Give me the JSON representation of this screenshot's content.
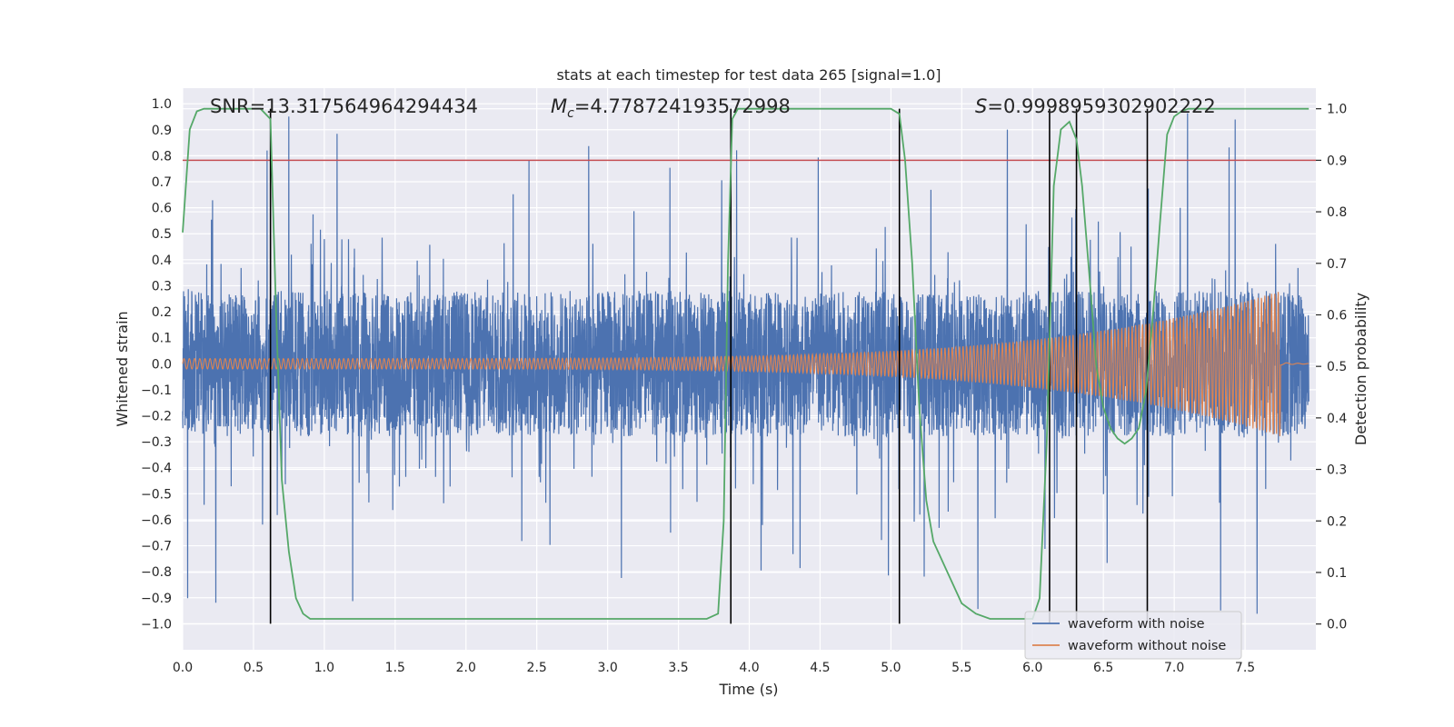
{
  "chart_data": {
    "type": "line",
    "title": "stats at each timestep for test data 265 [signal=1.0]",
    "xlabel": "Time (s)",
    "ylabel_left": "Whitened strain",
    "ylabel_right": "Detection probability",
    "xlim": [
      0.0,
      8.0
    ],
    "ylim_left": [
      -1.1,
      1.06
    ],
    "ylim_right": [
      -0.05,
      1.04
    ],
    "x_ticks": [
      "0.0",
      "0.5",
      "1.0",
      "1.5",
      "2.0",
      "2.5",
      "3.0",
      "3.5",
      "4.0",
      "4.5",
      "5.0",
      "5.5",
      "6.0",
      "6.5",
      "7.0",
      "7.5"
    ],
    "y_ticks_left": [
      "1.0",
      "0.9",
      "0.8",
      "0.7",
      "0.6",
      "0.5",
      "0.4",
      "0.3",
      "0.2",
      "0.1",
      "0.0",
      "-0.1",
      "-0.2",
      "-0.3",
      "-0.4",
      "-0.5",
      "-0.6",
      "-0.7",
      "-0.8",
      "-0.9",
      "-1.0"
    ],
    "y_ticks_right": [
      "1.0",
      "0.9",
      "0.8",
      "0.7",
      "0.6",
      "0.5",
      "0.4",
      "0.3",
      "0.2",
      "0.1",
      "0.0"
    ],
    "grid": true,
    "legend_position": "bottom-right",
    "annotations": {
      "snr": "SNR=13.317564964294434",
      "mc_prefix": "M",
      "mc_sub": "c",
      "mc_value": "=4.778724193572998",
      "s_prefix": "S",
      "s_value": "=0.9998959302902222"
    },
    "threshold": {
      "value": 0.9,
      "axis": "right",
      "color": "#c44e52"
    },
    "vertical_markers": [
      0.62,
      3.87,
      5.06,
      6.12,
      6.31,
      6.81
    ],
    "marker_ymin": -1.0,
    "marker_ymax_prob": 1.0,
    "series": [
      {
        "name": "waveform with noise",
        "color": "#4c72b0",
        "axis": "left",
        "kind": "noise",
        "envelope": 0.28,
        "peak_max": 0.97
      },
      {
        "name": "waveform without noise",
        "color": "#dd8452",
        "axis": "left",
        "kind": "chirp",
        "start_amp": 0.02,
        "end_amp": 0.28,
        "merger_time": 7.75
      },
      {
        "name": "detection probability",
        "color": "#55a868",
        "axis": "right",
        "x": [
          0.0,
          0.05,
          0.1,
          0.15,
          0.2,
          0.3,
          0.4,
          0.5,
          0.55,
          0.62,
          0.66,
          0.7,
          0.75,
          0.8,
          0.85,
          0.9,
          1.0,
          1.5,
          2.0,
          2.5,
          3.0,
          3.5,
          3.7,
          3.78,
          3.82,
          3.85,
          3.88,
          3.92,
          4.0,
          4.5,
          5.0,
          5.06,
          5.1,
          5.15,
          5.2,
          5.25,
          5.3,
          5.4,
          5.5,
          5.6,
          5.7,
          5.8,
          5.9,
          6.0,
          6.05,
          6.1,
          6.15,
          6.2,
          6.26,
          6.31,
          6.35,
          6.4,
          6.45,
          6.5,
          6.55,
          6.6,
          6.65,
          6.7,
          6.75,
          6.8,
          6.85,
          6.9,
          6.95,
          7.0,
          7.05,
          7.1,
          7.2,
          7.5,
          7.95
        ],
        "y": [
          0.76,
          0.96,
          0.995,
          1.0,
          1.0,
          1.0,
          1.0,
          1.0,
          1.0,
          0.98,
          0.6,
          0.28,
          0.14,
          0.05,
          0.02,
          0.01,
          0.01,
          0.01,
          0.01,
          0.01,
          0.01,
          0.01,
          0.01,
          0.02,
          0.2,
          0.7,
          0.98,
          1.0,
          1.0,
          1.0,
          1.0,
          0.99,
          0.9,
          0.7,
          0.42,
          0.24,
          0.16,
          0.1,
          0.04,
          0.02,
          0.01,
          0.01,
          0.01,
          0.01,
          0.05,
          0.35,
          0.85,
          0.96,
          0.975,
          0.94,
          0.85,
          0.68,
          0.5,
          0.42,
          0.38,
          0.36,
          0.35,
          0.36,
          0.38,
          0.45,
          0.6,
          0.78,
          0.95,
          0.985,
          0.995,
          1.0,
          1.0,
          1.0,
          1.0
        ]
      }
    ]
  }
}
